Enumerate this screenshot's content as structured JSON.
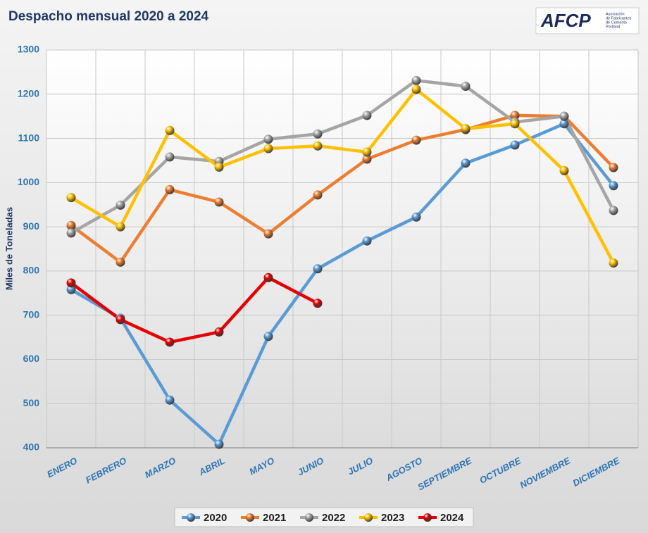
{
  "logo": {
    "name": "AFCP",
    "lines": [
      "Asociación",
      "de Fabricantes",
      "de Cemento",
      "Portland"
    ]
  },
  "chart_data": {
    "type": "line",
    "title": "Despacho mensual 2020 a 2024",
    "y_label": "Miles de Toneladas",
    "categories": [
      "ENERO",
      "FEBRERO",
      "MARZO",
      "ABRIL",
      "MAYO",
      "JUNIO",
      "JULIO",
      "AGOSTO",
      "SEPTIEMBRE",
      "OCTUBRE",
      "NOVIEMBRE",
      "DICIEMBRE"
    ],
    "ylim": [
      400,
      1300
    ],
    "yticks": [
      400,
      500,
      600,
      700,
      800,
      900,
      1000,
      1100,
      1200,
      1300
    ],
    "grid": true,
    "legend": "bottom",
    "series": [
      {
        "name": "2020",
        "color": "#5b9bd5",
        "values": [
          758,
          693,
          508,
          408,
          652,
          805,
          868,
          922,
          1044,
          1085,
          1133,
          993
        ]
      },
      {
        "name": "2021",
        "color": "#ed7d31",
        "values": [
          903,
          820,
          984,
          956,
          884,
          972,
          1053,
          1096,
          1120,
          1152,
          1150,
          1034
        ]
      },
      {
        "name": "2022",
        "color": "#a5a5a5",
        "values": [
          886,
          949,
          1058,
          1048,
          1098,
          1110,
          1152,
          1231,
          1218,
          1137,
          1150,
          937
        ]
      },
      {
        "name": "2023",
        "color": "#ffc000",
        "values": [
          966,
          900,
          1118,
          1035,
          1077,
          1083,
          1069,
          1211,
          1122,
          1133,
          1027,
          818
        ]
      },
      {
        "name": "2024",
        "color": "#e60000",
        "values": [
          773,
          690,
          639,
          662,
          785,
          727,
          null,
          null,
          null,
          null,
          null,
          null
        ]
      }
    ]
  }
}
